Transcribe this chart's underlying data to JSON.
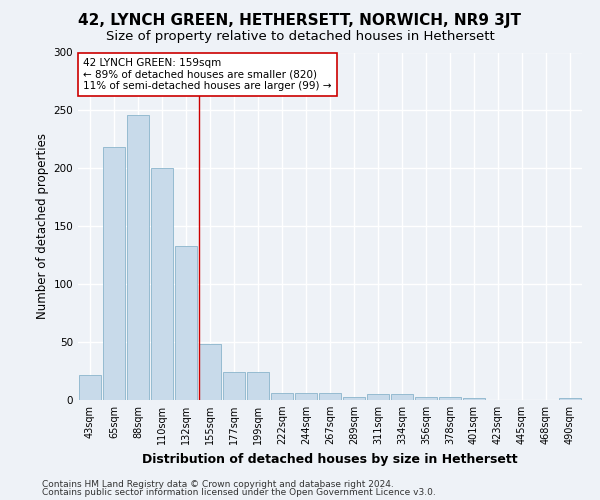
{
  "title": "42, LYNCH GREEN, HETHERSETT, NORWICH, NR9 3JT",
  "subtitle": "Size of property relative to detached houses in Hethersett",
  "xlabel": "Distribution of detached houses by size in Hethersett",
  "ylabel": "Number of detached properties",
  "bin_labels": [
    "43sqm",
    "65sqm",
    "88sqm",
    "110sqm",
    "132sqm",
    "155sqm",
    "177sqm",
    "199sqm",
    "222sqm",
    "244sqm",
    "267sqm",
    "289sqm",
    "311sqm",
    "334sqm",
    "356sqm",
    "378sqm",
    "401sqm",
    "423sqm",
    "445sqm",
    "468sqm",
    "490sqm"
  ],
  "bar_values": [
    22,
    218,
    246,
    200,
    133,
    48,
    24,
    24,
    6,
    6,
    6,
    3,
    5,
    5,
    3,
    3,
    2,
    0,
    0,
    0,
    2
  ],
  "bar_color": "#c8daea",
  "bar_edge_color": "#8ab4cc",
  "property_bin_index": 5,
  "annotation_line1": "42 LYNCH GREEN: 159sqm",
  "annotation_line2": "← 89% of detached houses are smaller (820)",
  "annotation_line3": "11% of semi-detached houses are larger (99) →",
  "annotation_box_color": "#ffffff",
  "annotation_box_edge": "#cc0000",
  "vline_color": "#cc0000",
  "footer_line1": "Contains HM Land Registry data © Crown copyright and database right 2024.",
  "footer_line2": "Contains public sector information licensed under the Open Government Licence v3.0.",
  "ylim": [
    0,
    300
  ],
  "background_color": "#eef2f7",
  "grid_color": "#ffffff",
  "title_fontsize": 11,
  "subtitle_fontsize": 9.5,
  "ylabel_fontsize": 8.5,
  "xlabel_fontsize": 9,
  "tick_fontsize": 7,
  "annotation_fontsize": 7.5,
  "footer_fontsize": 6.5
}
